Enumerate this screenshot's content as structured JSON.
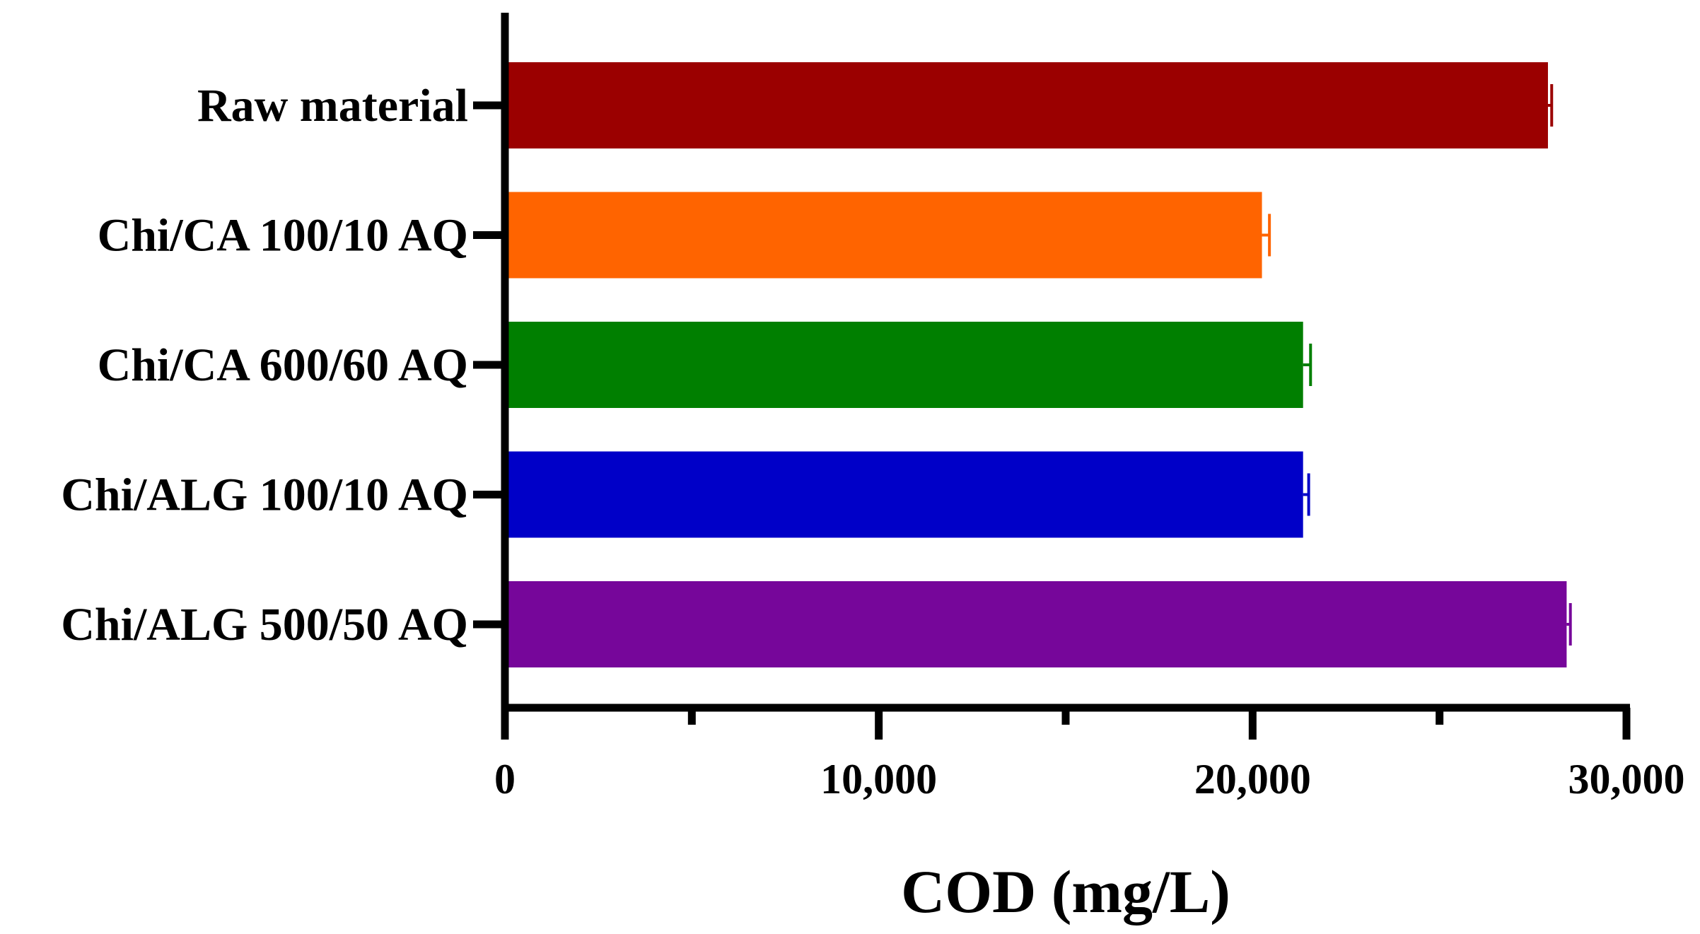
{
  "chart_data": {
    "type": "bar",
    "orientation": "horizontal",
    "title": "",
    "xlabel": "COD (mg/L)",
    "ylabel": "",
    "xlim": [
      0,
      30000
    ],
    "x_ticks": [
      {
        "value": 0,
        "label": "0"
      },
      {
        "value": 10000,
        "label": "10,000"
      },
      {
        "value": 20000,
        "label": "20,000"
      },
      {
        "value": 30000,
        "label": "30,000"
      }
    ],
    "x_minor_ticks": [
      5000,
      15000,
      25000
    ],
    "grid": false,
    "legend": "none",
    "categories": [
      "Raw material",
      "Chi/CA 100/10 AQ",
      "Chi/CA 600/60 AQ",
      "Chi/ALG 100/10 AQ",
      "Chi/ALG 500/50 AQ"
    ],
    "values": [
      27900,
      20250,
      21350,
      21350,
      28400
    ],
    "errors": [
      100,
      200,
      200,
      150,
      100
    ],
    "colors": [
      "#9B0000",
      "#FF6400",
      "#007F00",
      "#0000C8",
      "#76069A"
    ]
  }
}
